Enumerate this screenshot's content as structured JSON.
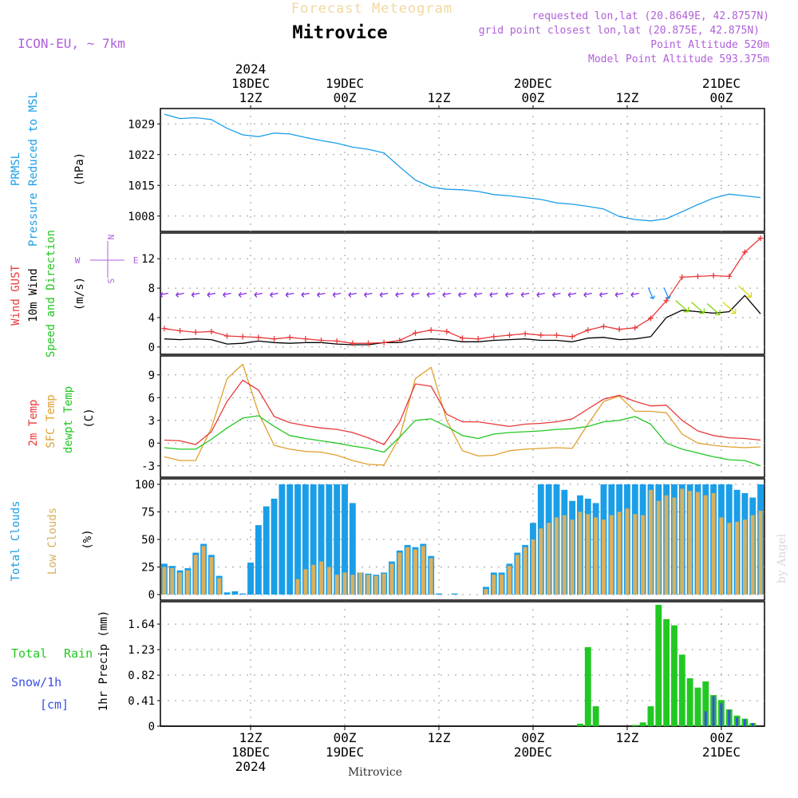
{
  "colors": {
    "purple": "#b05fd8",
    "pressure": "#1a9ee8",
    "gust": "#e8393b",
    "wind": "#000000",
    "dir_arrow_purple": "#8a2be2",
    "dir_arrow_blue": "#1a8cff",
    "dir_arrow_green": "#7fd600",
    "dir_arrow_yellow": "#d8d800",
    "temp2m": "#e8393b",
    "sfctemp": "#e0a030",
    "dewpt": "#22c822",
    "total_clouds": "#1a9ee8",
    "low_clouds": "#d8b060",
    "rain": "#22c822",
    "snow": "#3a4ee8",
    "credit": "#d8d8d8",
    "title_faded": "#f0d8a0"
  },
  "header": {
    "faded_title": "Forecast Meteogram",
    "place": "Mitrovice",
    "model": "ICON-EU, ~ 7km",
    "requested": "requested lon,lat (20.8649E, 42.8757N)",
    "grid_point": "grid point closest lon,lat (20.875E, 42.875N)",
    "point_alt": "Point Altitude 520m",
    "model_alt": "Model Point Altitude 593.375m",
    "footer_place": "Mitrovice",
    "credit": "by Angel"
  },
  "time_axis": {
    "top_labels": [
      {
        "lines": [
          "2024",
          "18DEC",
          "12Z"
        ],
        "t": 6
      },
      {
        "lines": [
          "19DEC",
          "00Z"
        ],
        "t": 18
      },
      {
        "lines": [
          "12Z"
        ],
        "t": 30
      },
      {
        "lines": [
          "20DEC",
          "00Z"
        ],
        "t": 42
      },
      {
        "lines": [
          "12Z"
        ],
        "t": 54
      },
      {
        "lines": [
          "21DEC",
          "00Z"
        ],
        "t": 66
      }
    ],
    "bottom_labels": [
      {
        "lines": [
          "12Z",
          "18DEC",
          "2024"
        ],
        "t": 6
      },
      {
        "lines": [
          "00Z",
          "19DEC"
        ],
        "t": 18
      },
      {
        "lines": [
          "12Z"
        ],
        "t": 30
      },
      {
        "lines": [
          "00Z",
          "20DEC"
        ],
        "t": 42
      },
      {
        "lines": [
          "12Z"
        ],
        "t": 54
      },
      {
        "lines": [
          "00Z",
          "21DEC"
        ],
        "t": 66
      }
    ],
    "range_hours": [
      -5.5,
      71.5
    ]
  },
  "chart_data": [
    {
      "type": "line",
      "title": "PRMSL Pressure Reduced to MSL",
      "legend": [
        "PRMSL",
        "Pressure Reduced to MSL"
      ],
      "ylabel": "(hPa)",
      "ylim": [
        1004.5,
        1032.5
      ],
      "yticks": [
        1008,
        1015,
        1022,
        1029
      ],
      "x_hours": [
        -5,
        -3,
        -1,
        1,
        3,
        5,
        7,
        9,
        11,
        13,
        15,
        17,
        19,
        21,
        23,
        25,
        27,
        29,
        31,
        33,
        35,
        37,
        39,
        41,
        43,
        45,
        47,
        49,
        51,
        53,
        55,
        57,
        59,
        61,
        63,
        65,
        67,
        69,
        71
      ],
      "series": [
        {
          "name": "PRMSL",
          "values": [
            1031.2,
            1030.2,
            1030.4,
            1030.0,
            1028.0,
            1026.5,
            1026.1,
            1026.9,
            1026.7,
            1025.9,
            1025.2,
            1024.6,
            1023.7,
            1023.2,
            1022.4,
            1019.2,
            1016.2,
            1014.6,
            1014.1,
            1014.0,
            1013.6,
            1012.9,
            1012.6,
            1012.2,
            1011.8,
            1011.0,
            1010.7,
            1010.2,
            1009.6,
            1007.9,
            1007.2,
            1006.9,
            1007.4,
            1009.0,
            1010.6,
            1012.1,
            1013.0,
            1012.6,
            1012.2
          ]
        }
      ]
    },
    {
      "type": "line",
      "title": "Wind GUST, 10m Wind Speed and Direction",
      "legend": [
        "Wind GUST",
        "10m Wind",
        "Speed and Direction"
      ],
      "ylabel": "(m/s)",
      "compass": {
        "n": "N",
        "e": "E",
        "s": "S",
        "w": "W"
      },
      "ylim": [
        -1,
        15.5
      ],
      "yticks": [
        0,
        4,
        8,
        12
      ],
      "x_hours": [
        -5,
        -3,
        -1,
        1,
        3,
        5,
        7,
        9,
        11,
        13,
        15,
        17,
        19,
        21,
        23,
        25,
        27,
        29,
        31,
        33,
        35,
        37,
        39,
        41,
        43,
        45,
        47,
        49,
        51,
        53,
        55,
        57,
        59,
        61,
        63,
        65,
        67,
        69,
        71
      ],
      "series": [
        {
          "name": "Wind GUST",
          "values": [
            2.5,
            2.2,
            2.0,
            2.1,
            1.5,
            1.4,
            1.3,
            1.1,
            1.3,
            1.1,
            0.9,
            0.8,
            0.5,
            0.5,
            0.6,
            0.9,
            1.9,
            2.3,
            2.1,
            1.2,
            1.1,
            1.4,
            1.6,
            1.8,
            1.6,
            1.6,
            1.4,
            2.3,
            2.8,
            2.4,
            2.6,
            3.9,
            6.3,
            9.5,
            9.6,
            9.7,
            9.6,
            12.9,
            14.8
          ]
        },
        {
          "name": "10m Wind",
          "values": [
            1.1,
            1.0,
            1.1,
            1.0,
            0.4,
            0.5,
            0.8,
            0.6,
            0.5,
            0.6,
            0.6,
            0.4,
            0.3,
            0.3,
            0.6,
            0.6,
            1.0,
            1.1,
            1.0,
            0.7,
            0.7,
            0.9,
            1.0,
            1.1,
            0.9,
            0.9,
            0.7,
            1.2,
            1.3,
            1.0,
            1.1,
            1.4,
            4.0,
            5.0,
            4.8,
            4.6,
            4.8,
            7.0,
            4.5
          ]
        }
      ],
      "direction_arrow_hours": [
        -5,
        -3,
        -1,
        1,
        3,
        5,
        7,
        9,
        11,
        13,
        15,
        17,
        19,
        21,
        23,
        25,
        27,
        29,
        31,
        33,
        35,
        37,
        39,
        41,
        43,
        45,
        47,
        49,
        51,
        53,
        55,
        57,
        59,
        61,
        63,
        65,
        67,
        69
      ]
    },
    {
      "type": "line",
      "title": "2m Temp, SFC Temp, dewpt Temp",
      "legend": [
        "2m Temp",
        "SFC Temp",
        "dewpt Temp"
      ],
      "ylabel": "(C)",
      "ylim": [
        -4.5,
        11.5
      ],
      "yticks": [
        -3,
        0,
        3,
        6,
        9
      ],
      "x_hours": [
        -5,
        -3,
        -1,
        1,
        3,
        5,
        7,
        9,
        11,
        13,
        15,
        17,
        19,
        21,
        23,
        25,
        27,
        29,
        31,
        33,
        35,
        37,
        39,
        41,
        43,
        45,
        47,
        49,
        51,
        53,
        55,
        57,
        59,
        61,
        63,
        65,
        67,
        69,
        71
      ],
      "series": [
        {
          "name": "2m Temp",
          "values": [
            0.4,
            0.3,
            -0.2,
            1.5,
            5.5,
            8.3,
            7.0,
            3.5,
            2.7,
            2.3,
            2.0,
            1.8,
            1.4,
            0.7,
            -0.2,
            2.8,
            7.8,
            7.5,
            3.8,
            2.8,
            2.8,
            2.5,
            2.2,
            2.5,
            2.6,
            2.8,
            3.2,
            4.5,
            5.8,
            6.3,
            5.5,
            4.9,
            5.0,
            3.0,
            1.6,
            1.0,
            0.7,
            0.6,
            0.4
          ]
        },
        {
          "name": "SFC Temp",
          "values": [
            -1.8,
            -2.3,
            -2.3,
            2.0,
            8.5,
            10.4,
            4.0,
            -0.3,
            -0.8,
            -1.1,
            -1.2,
            -1.6,
            -2.3,
            -2.8,
            -2.9,
            0.8,
            8.5,
            10.0,
            3.0,
            -1.0,
            -1.7,
            -1.6,
            -1.0,
            -0.8,
            -0.7,
            -0.6,
            -0.7,
            2.5,
            5.5,
            6.2,
            4.2,
            4.2,
            4.0,
            1.2,
            0.0,
            -0.3,
            -0.5,
            -0.6,
            -0.5
          ]
        },
        {
          "name": "dewpt Temp",
          "values": [
            -0.6,
            -0.8,
            -0.8,
            0.5,
            2.0,
            3.3,
            3.6,
            2.2,
            1.0,
            0.6,
            0.3,
            0.0,
            -0.4,
            -0.7,
            -1.2,
            0.8,
            3.0,
            3.2,
            2.2,
            1.0,
            0.6,
            1.2,
            1.4,
            1.5,
            1.6,
            1.8,
            1.9,
            2.2,
            2.8,
            3.0,
            3.5,
            2.5,
            0.0,
            -0.8,
            -1.3,
            -1.8,
            -2.2,
            -2.3,
            -3.0
          ]
        }
      ]
    },
    {
      "type": "bar",
      "title": "Total Clouds, Low Clouds",
      "legend": [
        "Total Clouds",
        "Low Clouds"
      ],
      "ylabel": "(%)",
      "ylim": [
        -5,
        105
      ],
      "yticks": [
        0,
        25,
        50,
        75,
        100
      ],
      "x_hours": [
        -5,
        -4,
        -3,
        -2,
        -1,
        0,
        1,
        2,
        3,
        4,
        5,
        6,
        7,
        8,
        9,
        10,
        11,
        12,
        13,
        14,
        15,
        16,
        17,
        18,
        19,
        20,
        21,
        22,
        23,
        24,
        25,
        26,
        27,
        28,
        29,
        30,
        31,
        32,
        33,
        34,
        35,
        36,
        37,
        38,
        39,
        40,
        41,
        42,
        43,
        44,
        45,
        46,
        47,
        48,
        49,
        50,
        51,
        52,
        53,
        54,
        55,
        56,
        57,
        58,
        59,
        60,
        61,
        62,
        63,
        64,
        65,
        66,
        67,
        68,
        69,
        70,
        71
      ],
      "series": [
        {
          "name": "Total Clouds",
          "values": [
            28,
            26,
            22,
            24,
            38,
            46,
            36,
            17,
            2,
            3,
            1,
            29,
            63,
            80,
            87,
            100,
            100,
            100,
            100,
            100,
            100,
            100,
            100,
            100,
            83,
            20,
            19,
            18,
            20,
            30,
            40,
            45,
            43,
            46,
            35,
            1,
            0,
            1,
            0,
            0,
            0,
            7,
            20,
            20,
            28,
            38,
            45,
            65,
            100,
            100,
            100,
            95,
            85,
            90,
            87,
            83,
            100,
            100,
            100,
            100,
            100,
            100,
            100,
            100,
            100,
            100,
            100,
            100,
            100,
            100,
            100,
            100,
            100,
            95,
            92,
            88,
            100
          ]
        },
        {
          "name": "Low Clouds",
          "values": [
            25,
            24,
            20,
            22,
            36,
            44,
            34,
            15,
            0,
            0,
            0,
            0,
            0,
            0,
            0,
            0,
            0,
            14,
            23,
            27,
            30,
            25,
            18,
            20,
            18,
            20,
            18,
            17,
            19,
            28,
            38,
            43,
            41,
            44,
            33,
            0,
            0,
            0,
            0,
            0,
            0,
            5,
            18,
            18,
            26,
            36,
            43,
            50,
            60,
            65,
            70,
            72,
            68,
            75,
            73,
            70,
            68,
            72,
            75,
            78,
            73,
            72,
            95,
            85,
            90,
            88,
            96,
            94,
            93,
            90,
            92,
            70,
            65,
            66,
            68,
            72,
            76
          ]
        }
      ]
    },
    {
      "type": "bar",
      "title": "1hr Precip (mm)",
      "legend": [
        "Total",
        "Rain",
        "Snow/1h",
        "[cm]"
      ],
      "ylabel": "1hr Precip (mm)",
      "ylim": [
        0,
        2.0
      ],
      "yticks": [
        0,
        0.41,
        0.82,
        1.23,
        1.64
      ],
      "ytick_labels": [
        "0",
        "0.41",
        "0.82",
        "1.23",
        "1.64"
      ],
      "x_hours": [
        48,
        49,
        50,
        55,
        56,
        57,
        58,
        59,
        60,
        61,
        62,
        63,
        64,
        65,
        66,
        67,
        68,
        69,
        70,
        71
      ],
      "series": [
        {
          "name": "Rain",
          "values": [
            0.04,
            1.27,
            0.32,
            0.02,
            0.06,
            0.32,
            1.95,
            1.72,
            1.62,
            1.15,
            0.77,
            0.62,
            0.72,
            0.5,
            0.42,
            0.27,
            0.17,
            0.12,
            0.05,
            0.0
          ]
        },
        {
          "name": "Snow",
          "values": [
            0,
            0,
            0,
            0,
            0,
            0,
            0,
            0,
            0,
            0,
            0,
            0,
            0.24,
            0.48,
            0.37,
            0.26,
            0.14,
            0.11,
            0.05,
            0.0
          ]
        }
      ]
    }
  ]
}
